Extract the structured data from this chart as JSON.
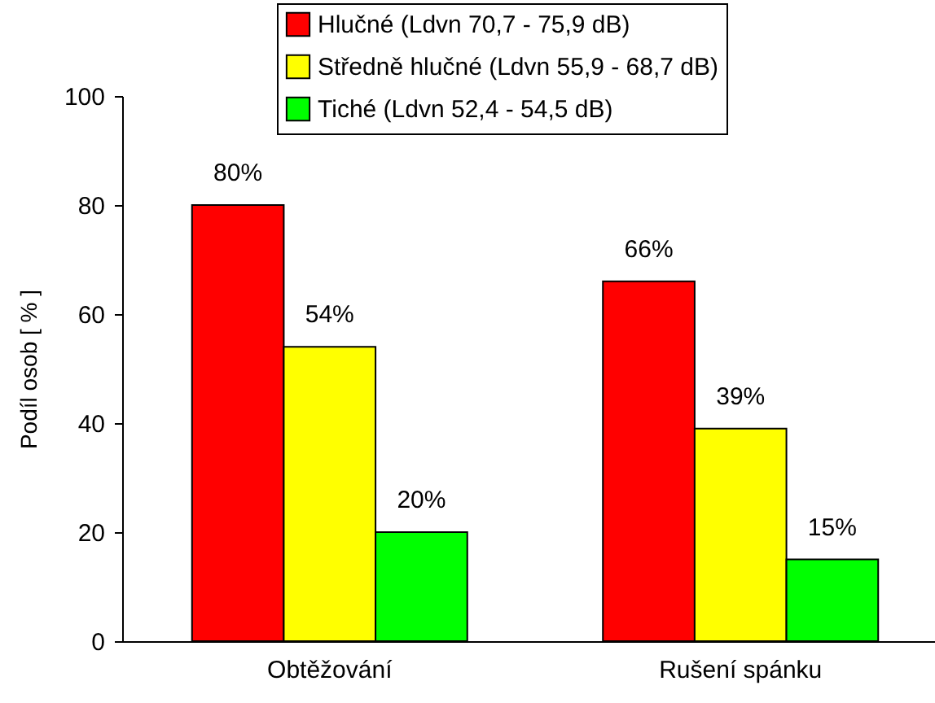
{
  "chart_data": {
    "type": "bar",
    "ylabel": "Podíl osob [ % ]",
    "categories": [
      "Obtěžování",
      "Rušení spánku"
    ],
    "series": [
      {
        "name": "Hlučné (Ldvn 70,7 - 75,9 dB)",
        "color": "#ff0000",
        "values": [
          80,
          66
        ],
        "value_labels": [
          "80%",
          "66%"
        ]
      },
      {
        "name": "Středně hlučné (Ldvn 55,9 - 68,7 dB)",
        "color": "#ffff00",
        "values": [
          54,
          39
        ],
        "value_labels": [
          "54%",
          "39%"
        ]
      },
      {
        "name": "Tiché  (Ldvn 52,4 - 54,5 dB)",
        "color": "#00ff00",
        "values": [
          20,
          15
        ],
        "value_labels": [
          "20%",
          "15%"
        ]
      }
    ],
    "ylim": [
      0,
      100
    ],
    "yticks": [
      0,
      20,
      40,
      60,
      80,
      100
    ],
    "grid": false,
    "legend": "top right"
  }
}
